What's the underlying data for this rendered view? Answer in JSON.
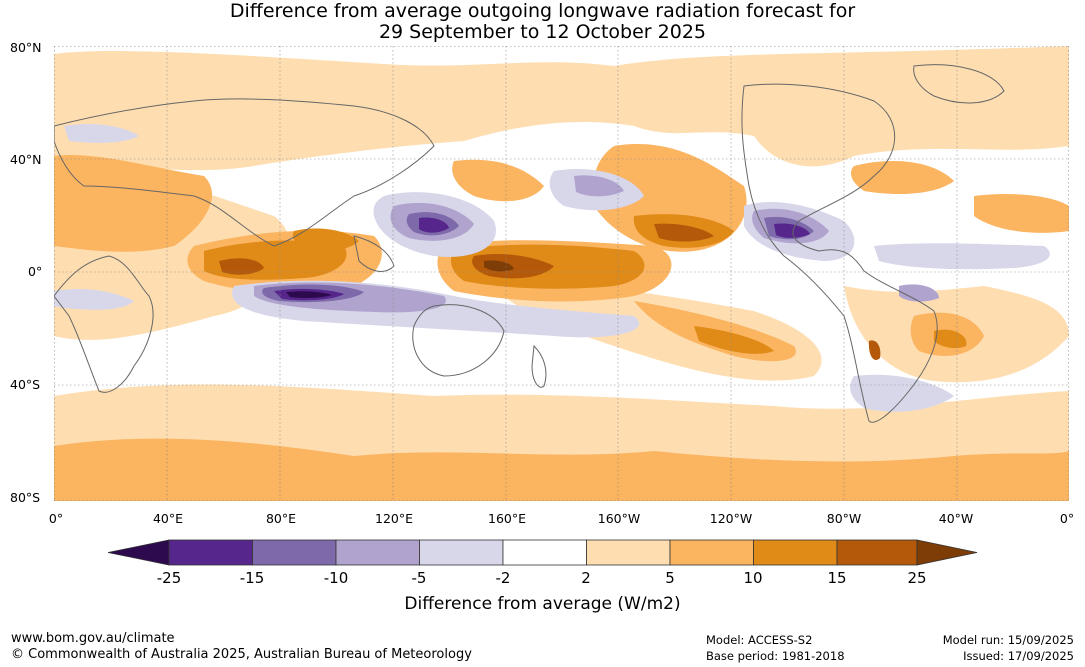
{
  "title": {
    "line1": "Difference from average outgoing longwave radiation forecast for",
    "line2": "29 September to 12 October 2025"
  },
  "map": {
    "lat_labels": [
      "80°N",
      "40°N",
      "0°",
      "40°S",
      "80°S"
    ],
    "lon_labels": [
      "0°",
      "40°E",
      "80°E",
      "120°E",
      "160°E",
      "160°W",
      "120°W",
      "80°W",
      "40°W",
      "0°"
    ]
  },
  "legend": {
    "colors": [
      "#2d0a4e",
      "#57268d",
      "#7e6aaa",
      "#b0a4cf",
      "#d8d7ea",
      "#ffffff",
      "#fedeb1",
      "#fbb460",
      "#e08a17",
      "#b35909",
      "#7e3c06"
    ],
    "ticks": [
      "-25",
      "-15",
      "-10",
      "-5",
      "-2",
      "2",
      "5",
      "10",
      "15",
      "25"
    ],
    "title": "Difference from average (W/m2)"
  },
  "footer": {
    "url": "www.bom.gov.au/climate",
    "copyright": "© Commonwealth of Australia 2025, Australian Bureau of Meteorology",
    "model": "Model: ACCESS-S2",
    "base_period": "Base period: 1981-2018",
    "model_run": "Model run: 15/09/2025",
    "issued": "Issued: 17/09/2025"
  }
}
